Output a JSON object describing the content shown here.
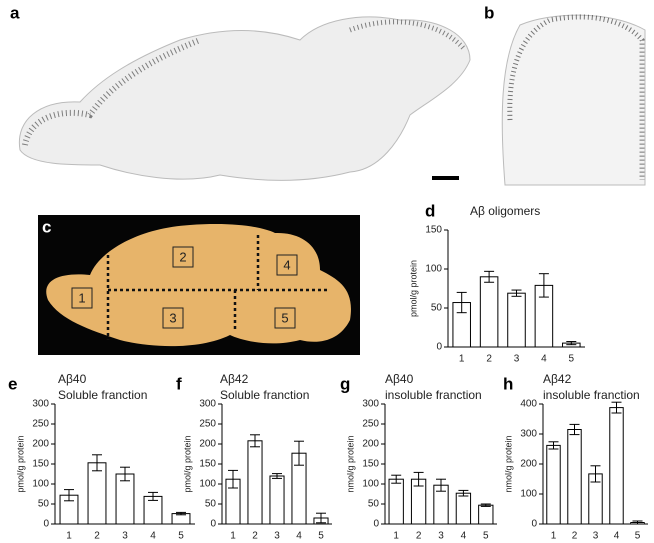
{
  "image_panels": [
    "a",
    "b",
    "c"
  ],
  "brain_regions": [
    "1",
    "2",
    "3",
    "4",
    "5"
  ],
  "chart_data": [
    {
      "type": "bar",
      "panel": "d",
      "title": "Aβ oligomers",
      "y_label": "pmol/g protein",
      "categories": [
        "1",
        "2",
        "3",
        "4",
        "5"
      ],
      "values": [
        57,
        90,
        69,
        79,
        5
      ],
      "errors": [
        13,
        7,
        4,
        15,
        2
      ],
      "ylim": [
        0,
        150
      ],
      "yticks": [
        0,
        50,
        100,
        150
      ]
    },
    {
      "type": "bar",
      "panel": "e",
      "title": "Aβ40",
      "subtitle": "Soluble franction",
      "y_label": "pmol/g protein",
      "categories": [
        "1",
        "2",
        "3",
        "4",
        "5"
      ],
      "values": [
        72,
        153,
        125,
        69,
        26
      ],
      "errors": [
        14,
        20,
        17,
        10,
        3
      ],
      "ylim": [
        0,
        300
      ],
      "yticks": [
        0,
        50,
        100,
        150,
        200,
        250,
        300
      ]
    },
    {
      "type": "bar",
      "panel": "f",
      "title": "Aβ42",
      "subtitle": "Soluble franction",
      "y_label": "pmol/g protein",
      "categories": [
        "1",
        "2",
        "3",
        "4",
        "5"
      ],
      "values": [
        112,
        208,
        120,
        177,
        15
      ],
      "errors": [
        22,
        15,
        6,
        30,
        12
      ],
      "ylim": [
        0,
        300
      ],
      "yticks": [
        0,
        50,
        100,
        150,
        200,
        250,
        300
      ]
    },
    {
      "type": "bar",
      "panel": "g",
      "title": "Aβ40",
      "subtitle": "insoluble franction",
      "y_label": "nmol/g protein",
      "categories": [
        "1",
        "2",
        "3",
        "4",
        "5"
      ],
      "values": [
        112,
        112,
        97,
        77,
        47
      ],
      "errors": [
        10,
        17,
        15,
        7,
        3
      ],
      "ylim": [
        0,
        300
      ],
      "yticks": [
        0,
        50,
        100,
        150,
        200,
        250,
        300
      ]
    },
    {
      "type": "bar",
      "panel": "h",
      "title": "Aβ42",
      "subtitle": "insoluble franction",
      "y_label": "nmol/g protein",
      "categories": [
        "1",
        "2",
        "3",
        "4",
        "5"
      ],
      "values": [
        262,
        315,
        167,
        388,
        5
      ],
      "errors": [
        12,
        17,
        27,
        18,
        5
      ],
      "ylim": [
        0,
        400
      ],
      "yticks": [
        0,
        100,
        200,
        300,
        400
      ]
    }
  ]
}
